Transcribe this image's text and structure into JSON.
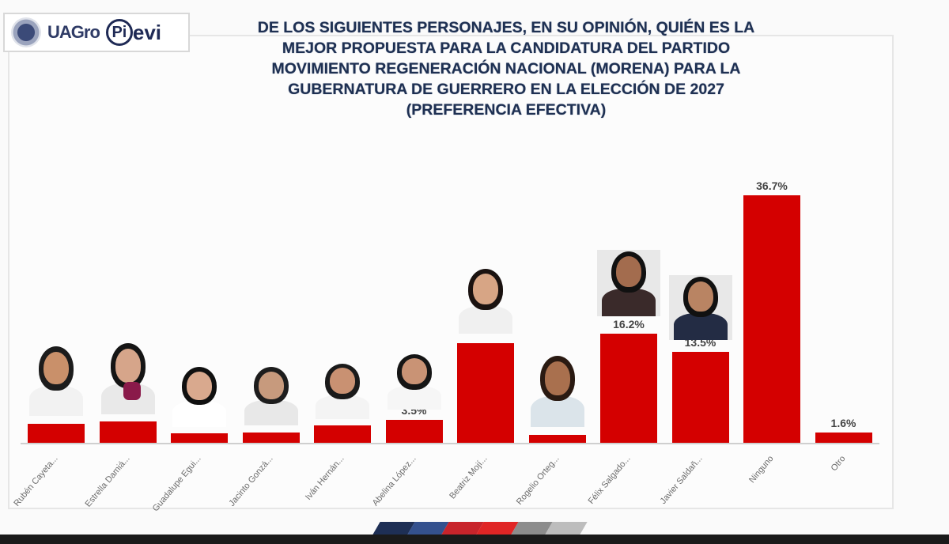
{
  "header": {
    "logos": [
      "UAGro",
      "Pievi"
    ],
    "title_lines": [
      "DE LOS SIGUIENTES PERSONAJES, EN SU OPINIÓN, QUIÉN ES LA",
      "MEJOR PROPUESTA PARA LA CANDIDATURA DEL PARTIDO",
      "MOVIMIENTO REGENERACIÓN NACIONAL (MORENA) PARA LA",
      "GUBERNATURA DE GUERRERO EN LA ELECCIÓN DE 2027",
      "(PREFERENCIA EFECTIVA)"
    ]
  },
  "colors": {
    "bar": "#d40000",
    "title": "#1e3052",
    "footer_strip": [
      "#1e2f55",
      "#34518e",
      "#c8242b",
      "#e02525",
      "#8c8c8c",
      "#bdbdbd"
    ]
  },
  "chart_data": {
    "type": "bar",
    "title": "DE LOS SIGUIENTES PERSONAJES, EN SU OPINIÓN, QUIÉN ES LA MEJOR PROPUESTA PARA LA CANDIDATURA DEL PARTIDO MOVIMIENTO REGENERACIÓN NACIONAL (MORENA) PARA LA GUBERNATURA DE GUERRERO EN LA ELECCIÓN DE 2027 (PREFERENCIA EFECTIVA)",
    "categories": [
      "Rubén Cayeta...",
      "Estrella Damiá...",
      "Guadalupe Egui...",
      "Jacinto Gonzá...",
      "Iván Hernán...",
      "Abelina López...",
      "Beatriz Mojí...",
      "Rogelio Orteg...",
      "Félix Salgado...",
      "Javier Saldañ...",
      "Ninguno",
      "Otro"
    ],
    "values": [
      2.9,
      3.3,
      1.5,
      1.6,
      2.7,
      3.5,
      14.8,
      1.3,
      16.2,
      13.5,
      36.7,
      1.6
    ],
    "value_labels": [
      "",
      "",
      "",
      "",
      "",
      "3.5%",
      "",
      "",
      "16.2%",
      "13.5%",
      "36.7%",
      "1.6%"
    ],
    "xlabel": "",
    "ylabel": "",
    "ylim": [
      0,
      40
    ],
    "grid": false,
    "legend": null,
    "annotations": "Candidate photos shown above the first ten bars"
  }
}
